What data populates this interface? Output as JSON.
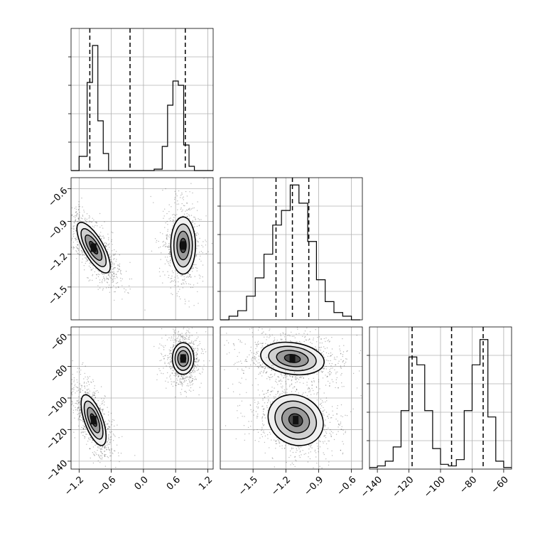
{
  "chart_data": {
    "type": "corner",
    "parameters": [
      {
        "key": "p0",
        "range": [
          -1.35,
          1.3
        ],
        "ticks": [
          -1.2,
          -0.6,
          0.0,
          0.6,
          1.2
        ],
        "tick_labels": [
          "−1.2",
          "−0.6",
          "0.0",
          "0.6",
          "1.2"
        ],
        "quantiles": [
          -1.0,
          -0.25,
          0.78
        ],
        "histogram": {
          "bins": [
            -1.35,
            -1.2,
            -1.05,
            -0.95,
            -0.85,
            -0.75,
            -0.65,
            -0.5,
            -0.35,
            -0.2,
            -0.05,
            0.05,
            0.2,
            0.35,
            0.45,
            0.55,
            0.65,
            0.75,
            0.85,
            0.95,
            1.05,
            1.15,
            1.3
          ],
          "counts": [
            0,
            0.1,
            0.62,
            0.88,
            0.35,
            0.12,
            0,
            0,
            0,
            0,
            0,
            0,
            0.01,
            0.17,
            0.46,
            0.63,
            0.6,
            0.18,
            0.03,
            0,
            0,
            0
          ],
          "ymax": 1.0
        }
      },
      {
        "key": "p1",
        "range": [
          -1.8,
          -0.5
        ],
        "ticks": [
          -1.5,
          -1.2,
          -0.9,
          -0.6
        ],
        "tick_labels": [
          "−1.5",
          "−1.2",
          "−0.9",
          "−0.6"
        ],
        "quantiles": [
          -1.29,
          -1.14,
          -0.99
        ],
        "histogram": {
          "bins": [
            -1.8,
            -1.72,
            -1.64,
            -1.56,
            -1.48,
            -1.4,
            -1.32,
            -1.24,
            -1.16,
            -1.08,
            -1.0,
            -0.92,
            -0.84,
            -0.76,
            -0.68,
            -0.6,
            -0.52
          ],
          "counts": [
            0,
            0.02,
            0.05,
            0.13,
            0.23,
            0.36,
            0.52,
            0.6,
            0.74,
            0.64,
            0.43,
            0.22,
            0.1,
            0.04,
            0.02,
            0
          ],
          "ymax": 0.78
        }
      },
      {
        "key": "p2",
        "range": [
          -145,
          -55
        ],
        "ticks": [
          -140,
          -120,
          -100,
          -80,
          -60
        ],
        "tick_labels": [
          "−140",
          "−120",
          "−100",
          "−80",
          "−60"
        ],
        "quantiles": [
          -118,
          -93,
          -73
        ],
        "histogram": {
          "bins": [
            -145,
            -140,
            -135,
            -130,
            -125,
            -120,
            -115,
            -110,
            -105,
            -100,
            -95,
            -90,
            -85,
            -80,
            -75,
            -70,
            -65,
            -60,
            -55
          ],
          "counts": [
            0.01,
            0.02,
            0.05,
            0.14,
            0.37,
            0.71,
            0.66,
            0.37,
            0.13,
            0.03,
            0.02,
            0.06,
            0.37,
            0.66,
            0.82,
            0.33,
            0.05,
            0.01
          ],
          "ymax": 0.9
        }
      }
    ],
    "pairs": [
      {
        "x": "p0",
        "y": "p1",
        "blobs": [
          {
            "cx": -0.93,
            "cy": -1.14,
            "sx": 0.12,
            "sy": 0.17,
            "rot_deg": 30,
            "weight": 1.0
          },
          {
            "cx": 0.74,
            "cy": -1.12,
            "sx": 0.15,
            "sy": 0.17,
            "rot_deg": 0,
            "weight": 0.75
          }
        ]
      },
      {
        "x": "p0",
        "y": "p2",
        "blobs": [
          {
            "cx": -0.93,
            "cy": -114,
            "sx": 0.11,
            "sy": 11,
            "rot_deg": 20,
            "weight": 1.0
          },
          {
            "cx": 0.74,
            "cy": -75,
            "sx": 0.13,
            "sy": 6.5,
            "rot_deg": 0,
            "weight": 1.0
          }
        ]
      },
      {
        "x": "p1",
        "y": "p2",
        "blobs": [
          {
            "cx": -1.14,
            "cy": -75,
            "sx": 0.19,
            "sy": 6.5,
            "rot_deg": -8,
            "weight": 1.0
          },
          {
            "cx": -1.11,
            "cy": -114,
            "sx": 0.17,
            "sy": 10,
            "rot_deg": -30,
            "weight": 1.0
          }
        ]
      }
    ],
    "grid": true,
    "xlabel": "",
    "ylabel": "",
    "title": ""
  }
}
